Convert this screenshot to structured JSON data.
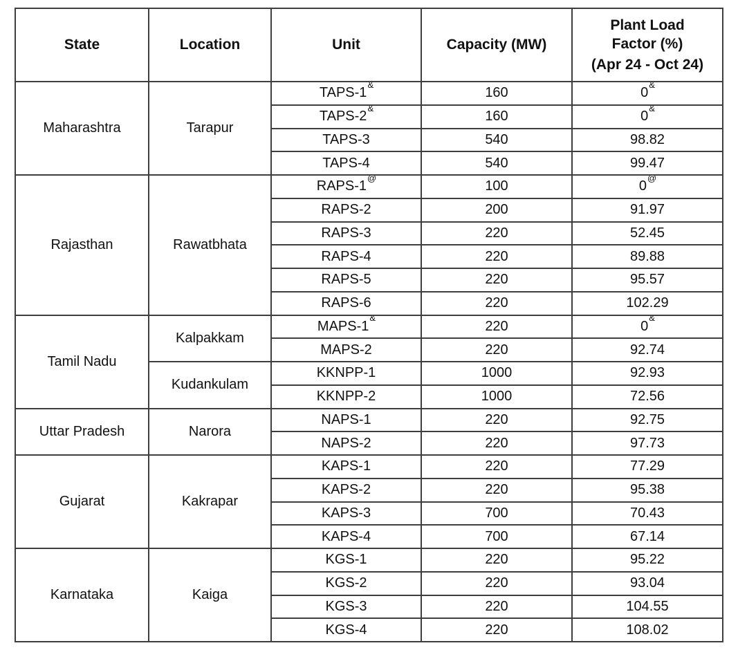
{
  "table": {
    "columns": [
      "State",
      "Location",
      "Unit",
      "Capacity (MW)"
    ],
    "plf_header_lines": [
      "Plant Load",
      "Factor (%)",
      "(Apr 24 - Oct 24)"
    ],
    "groups": [
      {
        "state": "Maharashtra",
        "locations": [
          {
            "name": "Tarapur",
            "units": [
              {
                "unit": "TAPS-1",
                "unit_sup": "&",
                "capacity": "160",
                "plf": "0",
                "plf_sup": "&"
              },
              {
                "unit": "TAPS-2",
                "unit_sup": "&",
                "capacity": "160",
                "plf": "0",
                "plf_sup": "&"
              },
              {
                "unit": "TAPS-3",
                "unit_sup": "",
                "capacity": "540",
                "plf": "98.82",
                "plf_sup": ""
              },
              {
                "unit": "TAPS-4",
                "unit_sup": "",
                "capacity": "540",
                "plf": "99.47",
                "plf_sup": ""
              }
            ]
          }
        ]
      },
      {
        "state": "Rajasthan",
        "locations": [
          {
            "name": "Rawatbhata",
            "units": [
              {
                "unit": "RAPS-1",
                "unit_sup": "@",
                "capacity": "100",
                "plf": "0",
                "plf_sup": "@"
              },
              {
                "unit": "RAPS-2",
                "unit_sup": "",
                "capacity": "200",
                "plf": "91.97",
                "plf_sup": ""
              },
              {
                "unit": "RAPS-3",
                "unit_sup": "",
                "capacity": "220",
                "plf": "52.45",
                "plf_sup": ""
              },
              {
                "unit": "RAPS-4",
                "unit_sup": "",
                "capacity": "220",
                "plf": "89.88",
                "plf_sup": ""
              },
              {
                "unit": "RAPS-5",
                "unit_sup": "",
                "capacity": "220",
                "plf": "95.57",
                "plf_sup": ""
              },
              {
                "unit": "RAPS-6",
                "unit_sup": "",
                "capacity": "220",
                "plf": "102.29",
                "plf_sup": ""
              }
            ]
          }
        ]
      },
      {
        "state": "Tamil Nadu",
        "locations": [
          {
            "name": "Kalpakkam",
            "units": [
              {
                "unit": "MAPS-1",
                "unit_sup": "&",
                "capacity": "220",
                "plf": "0",
                "plf_sup": "&"
              },
              {
                "unit": "MAPS-2",
                "unit_sup": "",
                "capacity": "220",
                "plf": "92.74",
                "plf_sup": ""
              }
            ]
          },
          {
            "name": "Kudankulam",
            "units": [
              {
                "unit": "KKNPP-1",
                "unit_sup": "",
                "capacity": "1000",
                "plf": "92.93",
                "plf_sup": ""
              },
              {
                "unit": "KKNPP-2",
                "unit_sup": "",
                "capacity": "1000",
                "plf": "72.56",
                "plf_sup": ""
              }
            ]
          }
        ]
      },
      {
        "state": "Uttar Pradesh",
        "locations": [
          {
            "name": "Narora",
            "units": [
              {
                "unit": "NAPS-1",
                "unit_sup": "",
                "capacity": "220",
                "plf": "92.75",
                "plf_sup": ""
              },
              {
                "unit": "NAPS-2",
                "unit_sup": "",
                "capacity": "220",
                "plf": "97.73",
                "plf_sup": ""
              }
            ]
          }
        ]
      },
      {
        "state": "Gujarat",
        "locations": [
          {
            "name": "Kakrapar",
            "units": [
              {
                "unit": "KAPS-1",
                "unit_sup": "",
                "capacity": "220",
                "plf": "77.29",
                "plf_sup": ""
              },
              {
                "unit": "KAPS-2",
                "unit_sup": "",
                "capacity": "220",
                "plf": "95.38",
                "plf_sup": ""
              },
              {
                "unit": "KAPS-3",
                "unit_sup": "",
                "capacity": "700",
                "plf": "70.43",
                "plf_sup": ""
              },
              {
                "unit": "KAPS-4",
                "unit_sup": "",
                "capacity": "700",
                "plf": "67.14",
                "plf_sup": ""
              }
            ]
          }
        ]
      },
      {
        "state": "Karnataka",
        "locations": [
          {
            "name": "Kaiga",
            "units": [
              {
                "unit": "KGS-1",
                "unit_sup": "",
                "capacity": "220",
                "plf": "95.22",
                "plf_sup": ""
              },
              {
                "unit": "KGS-2",
                "unit_sup": "",
                "capacity": "220",
                "plf": "93.04",
                "plf_sup": ""
              },
              {
                "unit": "KGS-3",
                "unit_sup": "",
                "capacity": "220",
                "plf": "104.55",
                "plf_sup": ""
              },
              {
                "unit": "KGS-4",
                "unit_sup": "",
                "capacity": "220",
                "plf": "108.02",
                "plf_sup": ""
              }
            ]
          }
        ]
      }
    ],
    "colors": {
      "border": "#3e3e3e",
      "text": "#111111",
      "background": "#ffffff"
    }
  }
}
